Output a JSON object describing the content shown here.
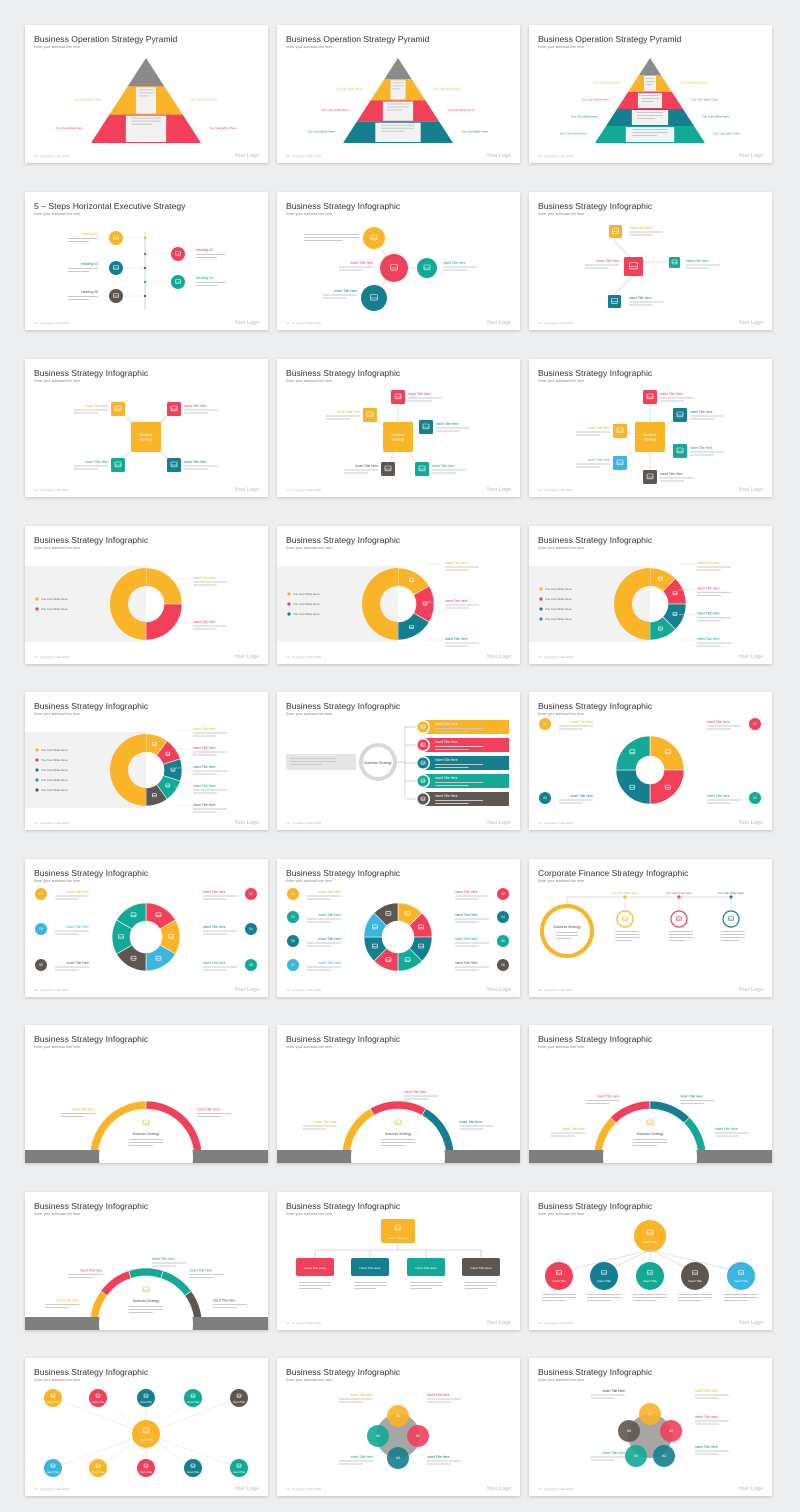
{
  "colors": {
    "yellow": "#f9b428",
    "red": "#f2405a",
    "teal": "#12aa96",
    "blue": "#137f8f",
    "brown": "#5e5751",
    "gray": "#8a8a8a",
    "sky": "#3bb6e0",
    "background": "#eceef0"
  },
  "common": {
    "subtitle": "Enter your subhead line here",
    "footer": "01 · Company / Date 2020",
    "logo": "Your Logo",
    "you_can_write_here": "You Can Write Here",
    "insert_title_here": "Insert Title Here",
    "insert_title": "Insert Title",
    "business_strategy": "Business Strategy"
  },
  "slides": [
    {
      "title": "Business Operation Strategy Pyramid",
      "kind": "pyramid2"
    },
    {
      "title": "Business Operation Strategy Pyramid",
      "kind": "pyramid3"
    },
    {
      "title": "Business Operation Strategy Pyramid",
      "kind": "pyramid4"
    },
    {
      "title": "5 – Steps Horizontal Executive Strategy",
      "kind": "steps",
      "headings": [
        "Heading 01",
        "Heading 02",
        "Heading 03",
        "Heading 04",
        "Heading 05"
      ]
    },
    {
      "title": "Business Strategy Infographic",
      "kind": "circles3"
    },
    {
      "title": "Business Strategy Infographic",
      "kind": "squares3"
    },
    {
      "title": "Business Strategy Infographic",
      "kind": "cross4"
    },
    {
      "title": "Business Strategy Infographic",
      "kind": "cross5"
    },
    {
      "title": "Business Strategy Infographic",
      "kind": "cross6"
    },
    {
      "title": "Business Strategy Infographic",
      "kind": "donut2"
    },
    {
      "title": "Business Strategy Infographic",
      "kind": "donut3"
    },
    {
      "title": "Business Strategy Infographic",
      "kind": "donut4"
    },
    {
      "title": "Business Strategy Infographic",
      "kind": "donut5"
    },
    {
      "title": "Business Strategy Infographic",
      "kind": "bars5"
    },
    {
      "title": "Business Strategy Infographic",
      "kind": "ring4"
    },
    {
      "title": "Business Strategy Infographic",
      "kind": "ring6"
    },
    {
      "title": "Business Strategy Infographic",
      "kind": "ring8"
    },
    {
      "title": "Corporate Finance Strategy Infographic",
      "kind": "finance"
    },
    {
      "title": "Business Strategy Infographic",
      "kind": "arc2"
    },
    {
      "title": "Business Strategy Infographic",
      "kind": "arc3"
    },
    {
      "title": "Business Strategy Infographic",
      "kind": "arc4"
    },
    {
      "title": "Business Strategy Infographic",
      "kind": "arc5"
    },
    {
      "title": "Business Strategy Infographic",
      "kind": "tree4"
    },
    {
      "title": "Business Strategy Infographic",
      "kind": "tree5"
    },
    {
      "title": "Business Strategy Infographic",
      "kind": "hub10"
    },
    {
      "title": "Business Strategy Infographic",
      "kind": "venn4"
    },
    {
      "title": "Business Strategy Infographic",
      "kind": "venn5"
    }
  ]
}
